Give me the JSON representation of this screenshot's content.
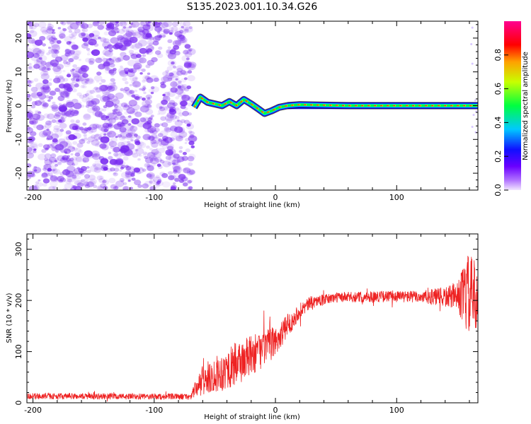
{
  "title": "S135.2023.001.10.34.G26",
  "colors": {
    "snr_line": "#ee2222",
    "noise_purple": "#7a2cf0",
    "axis": "#000000"
  },
  "chart_data": [
    {
      "type": "heatmap",
      "xlabel": "Height of straight line (km)",
      "ylabel": "Frequency (Hz)",
      "xlim": [
        -205,
        167
      ],
      "ylim": [
        -25,
        25
      ],
      "xticks": [
        -200,
        -100,
        0,
        100
      ],
      "yticks": [
        -20,
        -10,
        0,
        10,
        20
      ],
      "colorbar": {
        "label": "Normalized spectral amplitude",
        "range": [
          0,
          1
        ],
        "ticks": [
          0.0,
          0.2,
          0.4,
          0.6,
          0.8
        ],
        "colormap": "rainbow (purple→blue→cyan→green→yellow→red→magenta)"
      },
      "description_points": {
        "noise_region_x": [
          -205,
          -68
        ],
        "signal_trace": [
          {
            "x": -67,
            "y": -0.5
          },
          {
            "x": -62,
            "y": 2.5
          },
          {
            "x": -56,
            "y": 1.0
          },
          {
            "x": -50,
            "y": 0.5
          },
          {
            "x": -44,
            "y": 0.0
          },
          {
            "x": -38,
            "y": 1.2
          },
          {
            "x": -32,
            "y": 0.0
          },
          {
            "x": -26,
            "y": 1.8
          },
          {
            "x": -20,
            "y": 0.5
          },
          {
            "x": -14,
            "y": -1.0
          },
          {
            "x": -9,
            "y": -2.3
          },
          {
            "x": -3,
            "y": -1.5
          },
          {
            "x": 3,
            "y": -0.5
          },
          {
            "x": 10,
            "y": 0.0
          },
          {
            "x": 20,
            "y": 0.3
          },
          {
            "x": 30,
            "y": 0.2
          },
          {
            "x": 60,
            "y": 0.0
          },
          {
            "x": 100,
            "y": 0.0
          },
          {
            "x": 140,
            "y": 0.0
          },
          {
            "x": 167,
            "y": 0.0
          }
        ]
      }
    },
    {
      "type": "line",
      "xlabel": "Height of straight line (km)",
      "ylabel": "SNR (10 * v/v)",
      "xlim": [
        -205,
        167
      ],
      "ylim": [
        0,
        330
      ],
      "xticks": [
        -200,
        -100,
        0,
        100
      ],
      "yticks": [
        0,
        100,
        200,
        300
      ],
      "trend": [
        {
          "x": -205,
          "y": 13
        },
        {
          "x": -100,
          "y": 12
        },
        {
          "x": -70,
          "y": 12
        },
        {
          "x": -65,
          "y": 30
        },
        {
          "x": -55,
          "y": 50
        },
        {
          "x": -40,
          "y": 65
        },
        {
          "x": -25,
          "y": 85
        },
        {
          "x": -10,
          "y": 105
        },
        {
          "x": 0,
          "y": 120
        },
        {
          "x": 10,
          "y": 150
        },
        {
          "x": 20,
          "y": 180
        },
        {
          "x": 30,
          "y": 197
        },
        {
          "x": 50,
          "y": 206
        },
        {
          "x": 100,
          "y": 208
        },
        {
          "x": 140,
          "y": 206
        },
        {
          "x": 155,
          "y": 210
        },
        {
          "x": 167,
          "y": 210
        }
      ],
      "noise_amp": [
        {
          "x": -205,
          "y": 6
        },
        {
          "x": -70,
          "y": 6
        },
        {
          "x": -60,
          "y": 30
        },
        {
          "x": -30,
          "y": 45
        },
        {
          "x": 0,
          "y": 30
        },
        {
          "x": 20,
          "y": 15
        },
        {
          "x": 40,
          "y": 10
        },
        {
          "x": 120,
          "y": 12
        },
        {
          "x": 150,
          "y": 25
        },
        {
          "x": 158,
          "y": 80
        },
        {
          "x": 167,
          "y": 70
        }
      ]
    }
  ]
}
